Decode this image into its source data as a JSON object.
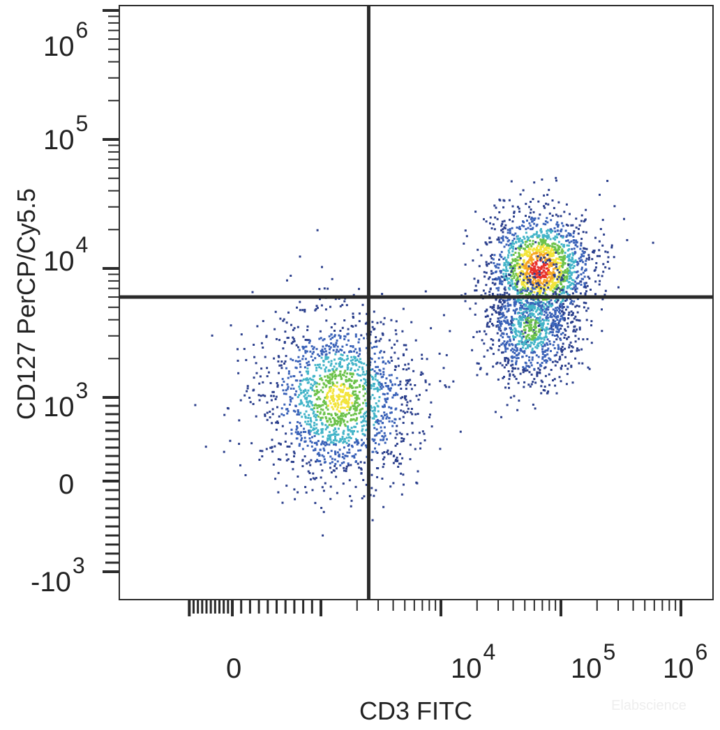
{
  "chart_data": {
    "type": "scatter",
    "subtype": "flow-cytometry-density-dot-plot",
    "xlabel": "CD3 FITC",
    "ylabel": "CD127 PerCP/Cy5.5",
    "x_scale": "biexponential",
    "y_scale": "biexponential",
    "xlim": [
      -1500,
      1500000
    ],
    "ylim": [
      -1500,
      1500000
    ],
    "x_tick_labels": [
      {
        "base": "0",
        "exp": ""
      },
      {
        "base": "10",
        "exp": "4"
      },
      {
        "base": "10",
        "exp": "5"
      },
      {
        "base": "10",
        "exp": "6"
      }
    ],
    "y_tick_labels": [
      {
        "base": "10",
        "exp": "6"
      },
      {
        "base": "10",
        "exp": "5"
      },
      {
        "base": "10",
        "exp": "4"
      },
      {
        "base": "10",
        "exp": "3"
      },
      {
        "base": "0",
        "exp": ""
      },
      {
        "base": "-10",
        "exp": "3"
      }
    ],
    "quadrant_gate": {
      "x": 2500,
      "y": 6000
    },
    "populations": [
      {
        "x_center": 1400,
        "y_center": 1000,
        "count": 1700,
        "relative_density": "medium",
        "colormap": "blue-cyan-yellow"
      },
      {
        "x_center": 65000,
        "y_center": 10000,
        "count": 1600,
        "relative_density": "high",
        "colormap": "blue-green-yellow-red"
      },
      {
        "x_center": 55000,
        "y_center": 3500,
        "count": 900,
        "relative_density": "medium",
        "colormap": "blue-cyan-green"
      }
    ],
    "density_colors": [
      "#2b3f8c",
      "#3a62b8",
      "#43b4c8",
      "#6cc24a",
      "#f2e43a",
      "#f5a623",
      "#e8302a"
    ],
    "gate_color": "#2a2a2a",
    "grid": false,
    "watermark": "Elabscience"
  }
}
